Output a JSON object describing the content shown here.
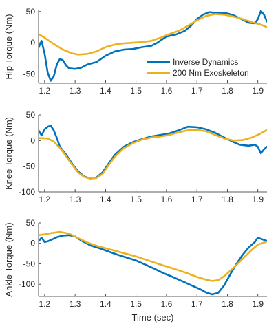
{
  "chart_data": [
    {
      "type": "line",
      "ylabel": "Hip Torque (Nm)",
      "xlim": [
        1.18,
        1.93
      ],
      "ylim": [
        -65,
        52
      ],
      "xticks": [
        1.2,
        1.3,
        1.4,
        1.5,
        1.6,
        1.7,
        1.8,
        1.9
      ],
      "yticks": [
        -50,
        0,
        50
      ],
      "legend_position": "lower-right",
      "series": [
        {
          "name": "Inverse Dynamics",
          "color": "#0072BD",
          "points": [
            [
              1.18,
              -8
            ],
            [
              1.19,
              3
            ],
            [
              1.2,
              -18
            ],
            [
              1.21,
              -48
            ],
            [
              1.22,
              -61
            ],
            [
              1.23,
              -54
            ],
            [
              1.24,
              -35
            ],
            [
              1.25,
              -26
            ],
            [
              1.26,
              -28
            ],
            [
              1.27,
              -36
            ],
            [
              1.28,
              -41
            ],
            [
              1.3,
              -42
            ],
            [
              1.32,
              -40
            ],
            [
              1.34,
              -35
            ],
            [
              1.37,
              -31
            ],
            [
              1.4,
              -21
            ],
            [
              1.43,
              -14
            ],
            [
              1.46,
              -11
            ],
            [
              1.49,
              -10
            ],
            [
              1.52,
              -7
            ],
            [
              1.55,
              -5
            ],
            [
              1.57,
              0
            ],
            [
              1.6,
              10
            ],
            [
              1.63,
              13
            ],
            [
              1.66,
              19
            ],
            [
              1.68,
              27
            ],
            [
              1.7,
              38
            ],
            [
              1.72,
              45
            ],
            [
              1.74,
              49
            ],
            [
              1.76,
              48
            ],
            [
              1.78,
              48
            ],
            [
              1.8,
              47
            ],
            [
              1.82,
              44
            ],
            [
              1.85,
              37
            ],
            [
              1.87,
              32
            ],
            [
              1.89,
              31
            ],
            [
              1.9,
              38
            ],
            [
              1.91,
              51
            ],
            [
              1.92,
              45
            ],
            [
              1.93,
              34
            ]
          ]
        },
        {
          "name": "200 Nm Exoskeleton",
          "color": "#EDB120",
          "points": [
            [
              1.18,
              14
            ],
            [
              1.2,
              8
            ],
            [
              1.23,
              -2
            ],
            [
              1.26,
              -11
            ],
            [
              1.29,
              -17
            ],
            [
              1.31,
              -19
            ],
            [
              1.34,
              -18
            ],
            [
              1.37,
              -14
            ],
            [
              1.4,
              -7
            ],
            [
              1.43,
              -3
            ],
            [
              1.46,
              -1
            ],
            [
              1.49,
              0
            ],
            [
              1.52,
              1
            ],
            [
              1.55,
              3
            ],
            [
              1.58,
              8
            ],
            [
              1.61,
              14
            ],
            [
              1.64,
              19
            ],
            [
              1.67,
              27
            ],
            [
              1.7,
              36
            ],
            [
              1.73,
              43
            ],
            [
              1.76,
              46
            ],
            [
              1.79,
              45
            ],
            [
              1.82,
              42
            ],
            [
              1.85,
              38
            ],
            [
              1.88,
              33
            ],
            [
              1.91,
              29
            ],
            [
              1.93,
              25
            ]
          ]
        }
      ]
    },
    {
      "type": "line",
      "ylabel": "Knee Torque (Nm)",
      "xlim": [
        1.18,
        1.93
      ],
      "ylim": [
        -100,
        50
      ],
      "xticks": [
        1.2,
        1.3,
        1.4,
        1.5,
        1.6,
        1.7,
        1.8,
        1.9
      ],
      "yticks": [
        -100,
        -50,
        0,
        50
      ],
      "series": [
        {
          "name": "Inverse Dynamics",
          "color": "#0072BD",
          "points": [
            [
              1.18,
              20
            ],
            [
              1.19,
              10
            ],
            [
              1.2,
              22
            ],
            [
              1.21,
              27
            ],
            [
              1.22,
              29
            ],
            [
              1.23,
              20
            ],
            [
              1.24,
              5
            ],
            [
              1.25,
              -12
            ],
            [
              1.27,
              -27
            ],
            [
              1.29,
              -45
            ],
            [
              1.31,
              -60
            ],
            [
              1.33,
              -70
            ],
            [
              1.35,
              -74
            ],
            [
              1.37,
              -72
            ],
            [
              1.39,
              -62
            ],
            [
              1.41,
              -45
            ],
            [
              1.43,
              -28
            ],
            [
              1.46,
              -12
            ],
            [
              1.49,
              -3
            ],
            [
              1.52,
              3
            ],
            [
              1.55,
              8
            ],
            [
              1.58,
              11
            ],
            [
              1.61,
              14
            ],
            [
              1.64,
              20
            ],
            [
              1.67,
              27
            ],
            [
              1.7,
              26
            ],
            [
              1.73,
              22
            ],
            [
              1.76,
              15
            ],
            [
              1.79,
              6
            ],
            [
              1.82,
              -3
            ],
            [
              1.84,
              -8
            ],
            [
              1.87,
              -10
            ],
            [
              1.89,
              -8
            ],
            [
              1.9,
              -12
            ],
            [
              1.91,
              -25
            ],
            [
              1.92,
              -17
            ],
            [
              1.93,
              -12
            ]
          ]
        },
        {
          "name": "200 Nm Exoskeleton",
          "color": "#EDB120",
          "points": [
            [
              1.18,
              5
            ],
            [
              1.21,
              4
            ],
            [
              1.23,
              -2
            ],
            [
              1.25,
              -14
            ],
            [
              1.27,
              -30
            ],
            [
              1.29,
              -47
            ],
            [
              1.31,
              -62
            ],
            [
              1.33,
              -71
            ],
            [
              1.35,
              -74
            ],
            [
              1.37,
              -73
            ],
            [
              1.39,
              -65
            ],
            [
              1.41,
              -48
            ],
            [
              1.43,
              -32
            ],
            [
              1.46,
              -15
            ],
            [
              1.49,
              -5
            ],
            [
              1.52,
              2
            ],
            [
              1.55,
              6
            ],
            [
              1.58,
              8
            ],
            [
              1.61,
              11
            ],
            [
              1.64,
              16
            ],
            [
              1.67,
              20
            ],
            [
              1.7,
              21
            ],
            [
              1.73,
              18
            ],
            [
              1.76,
              11
            ],
            [
              1.79,
              4
            ],
            [
              1.82,
              0
            ],
            [
              1.85,
              1
            ],
            [
              1.88,
              6
            ],
            [
              1.91,
              14
            ],
            [
              1.93,
              21
            ]
          ]
        }
      ]
    },
    {
      "type": "line",
      "ylabel": "Ankle Torque (Nm)",
      "xlabel": "Time (sec)",
      "xlim": [
        1.18,
        1.93
      ],
      "ylim": [
        -130,
        50
      ],
      "xticks": [
        1.2,
        1.3,
        1.4,
        1.5,
        1.6,
        1.7,
        1.8,
        1.9
      ],
      "yticks": [
        -100,
        -50,
        0,
        50
      ],
      "series": [
        {
          "name": "Inverse Dynamics",
          "color": "#0072BD",
          "points": [
            [
              1.18,
              5
            ],
            [
              1.19,
              14
            ],
            [
              1.2,
              3
            ],
            [
              1.21,
              5
            ],
            [
              1.22,
              8
            ],
            [
              1.24,
              15
            ],
            [
              1.26,
              19
            ],
            [
              1.28,
              20
            ],
            [
              1.3,
              17
            ],
            [
              1.32,
              7
            ],
            [
              1.35,
              -5
            ],
            [
              1.38,
              -12
            ],
            [
              1.41,
              -20
            ],
            [
              1.44,
              -28
            ],
            [
              1.47,
              -35
            ],
            [
              1.5,
              -42
            ],
            [
              1.53,
              -52
            ],
            [
              1.56,
              -62
            ],
            [
              1.59,
              -73
            ],
            [
              1.62,
              -82
            ],
            [
              1.65,
              -92
            ],
            [
              1.68,
              -102
            ],
            [
              1.71,
              -112
            ],
            [
              1.73,
              -120
            ],
            [
              1.75,
              -125
            ],
            [
              1.77,
              -121
            ],
            [
              1.79,
              -102
            ],
            [
              1.81,
              -75
            ],
            [
              1.83,
              -50
            ],
            [
              1.85,
              -28
            ],
            [
              1.87,
              -10
            ],
            [
              1.89,
              3
            ],
            [
              1.9,
              14
            ],
            [
              1.91,
              11
            ],
            [
              1.93,
              6
            ]
          ]
        },
        {
          "name": "200 Nm Exoskeleton",
          "color": "#EDB120",
          "points": [
            [
              1.18,
              20
            ],
            [
              1.2,
              22
            ],
            [
              1.22,
              25
            ],
            [
              1.25,
              28
            ],
            [
              1.28,
              24
            ],
            [
              1.31,
              13
            ],
            [
              1.34,
              2
            ],
            [
              1.37,
              -6
            ],
            [
              1.4,
              -12
            ],
            [
              1.43,
              -18
            ],
            [
              1.46,
              -24
            ],
            [
              1.5,
              -32
            ],
            [
              1.54,
              -42
            ],
            [
              1.58,
              -52
            ],
            [
              1.62,
              -61
            ],
            [
              1.66,
              -71
            ],
            [
              1.7,
              -82
            ],
            [
              1.73,
              -89
            ],
            [
              1.75,
              -92
            ],
            [
              1.77,
              -90
            ],
            [
              1.79,
              -80
            ],
            [
              1.82,
              -60
            ],
            [
              1.85,
              -38
            ],
            [
              1.88,
              -16
            ],
            [
              1.9,
              -3
            ],
            [
              1.93,
              4
            ]
          ]
        }
      ]
    }
  ]
}
